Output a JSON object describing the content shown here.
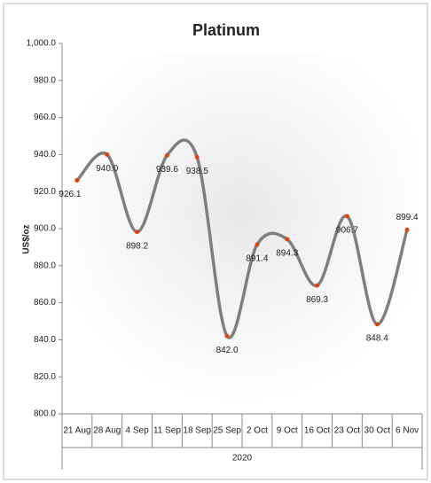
{
  "chart_data": {
    "type": "line",
    "title": "Platinum",
    "y_label": "US$/oz",
    "x_group_label": "2020",
    "categories": [
      "21 Aug",
      "28 Aug",
      "4 Sep",
      "11 Sep",
      "18 Sep",
      "25 Sep",
      "2 Oct",
      "9 Oct",
      "16 Oct",
      "23 Oct",
      "30 Oct",
      "6 Nov"
    ],
    "series": [
      {
        "name": "Platinum",
        "color": "#7f7f7f",
        "marker_color": "#e0440e",
        "values": [
          926.1,
          940.0,
          898.2,
          939.6,
          938.5,
          842.0,
          891.4,
          894.3,
          869.3,
          906.7,
          848.4,
          899.4
        ],
        "value_labels": [
          "926.1",
          "940.0",
          "898.2",
          "939.6",
          "938.5",
          "842.0",
          "891.4",
          "894.3",
          "869.3",
          "906.7",
          "848.4",
          "899.4"
        ]
      }
    ],
    "ylim": [
      800,
      1000
    ],
    "yticks": [
      {
        "value": 800,
        "label": "800.0"
      },
      {
        "value": 820,
        "label": "820.0"
      },
      {
        "value": 840,
        "label": "840.0"
      },
      {
        "value": 860,
        "label": "860.0"
      },
      {
        "value": 880,
        "label": "880.0"
      },
      {
        "value": 900,
        "label": "900.0"
      },
      {
        "value": 920,
        "label": "920.0"
      },
      {
        "value": 940,
        "label": "940.0"
      },
      {
        "value": 960,
        "label": "960.0"
      },
      {
        "value": 980,
        "label": "980.0"
      },
      {
        "value": 1000,
        "label": "1,000.0"
      }
    ],
    "smooth": true,
    "grid": false
  }
}
